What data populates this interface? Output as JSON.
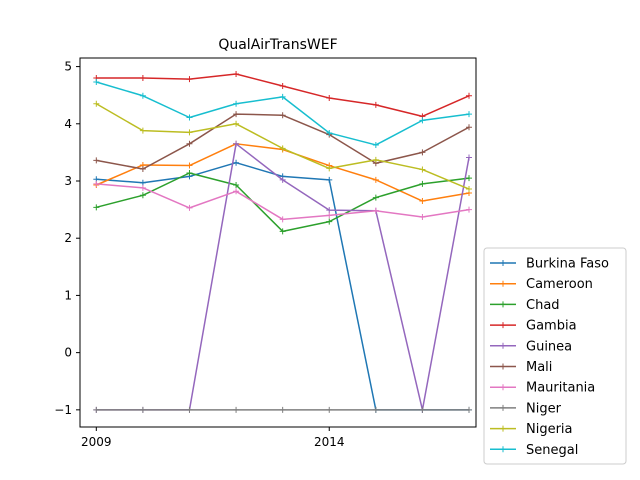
{
  "chart_data": {
    "type": "line",
    "title": "QualAirTransWEF",
    "xlabel": "",
    "ylabel": "",
    "x": [
      2009,
      2010,
      2011,
      2012,
      2013,
      2014,
      2015,
      2016,
      2017
    ],
    "xticks": [
      2009,
      2014
    ],
    "yticks": [
      -1,
      0,
      1,
      2,
      3,
      4,
      5
    ],
    "xlim": [
      2008.65,
      2017.15
    ],
    "ylim": [
      -1.3,
      5.15
    ],
    "grid": false,
    "legend_position": "lower-right, outside plot",
    "series": [
      {
        "name": "Burkina Faso",
        "color": "#1f77b4",
        "values": [
          3.03,
          2.97,
          3.08,
          3.32,
          3.08,
          3.02,
          -1.0,
          -1.0,
          -1.0
        ]
      },
      {
        "name": "Cameroon",
        "color": "#ff7f0e",
        "values": [
          2.93,
          3.28,
          3.27,
          3.65,
          3.55,
          3.27,
          3.02,
          2.65,
          2.79
        ]
      },
      {
        "name": "Chad",
        "color": "#2ca02c",
        "values": [
          2.54,
          2.75,
          3.14,
          2.93,
          2.12,
          2.29,
          2.71,
          2.95,
          3.05
        ]
      },
      {
        "name": "Gambia",
        "color": "#d62728",
        "values": [
          4.8,
          4.8,
          4.78,
          4.87,
          4.66,
          4.45,
          4.33,
          4.13,
          4.49
        ]
      },
      {
        "name": "Guinea",
        "color": "#9467bd",
        "values": [
          -1.0,
          -1.0,
          -1.0,
          3.65,
          3.02,
          2.49,
          2.48,
          -1.0,
          3.41
        ]
      },
      {
        "name": "Mali",
        "color": "#8c564b",
        "values": [
          3.36,
          3.21,
          3.65,
          4.17,
          4.15,
          3.81,
          3.31,
          3.5,
          3.94
        ]
      },
      {
        "name": "Mauritania",
        "color": "#e377c2",
        "values": [
          2.95,
          2.88,
          2.53,
          2.82,
          2.33,
          2.4,
          2.48,
          2.37,
          2.5
        ]
      },
      {
        "name": "Niger",
        "color": "#7f7f7f",
        "values": [
          -1.0,
          -1.0,
          -1.0,
          -1.0,
          -1.0,
          -1.0,
          -1.0,
          -1.0,
          -1.0
        ]
      },
      {
        "name": "Nigeria",
        "color": "#bcbd22",
        "values": [
          4.35,
          3.88,
          3.85,
          4.0,
          3.57,
          3.22,
          3.37,
          3.2,
          2.86
        ]
      },
      {
        "name": "Senegal",
        "color": "#17becf",
        "values": [
          4.73,
          4.49,
          4.11,
          4.35,
          4.47,
          3.84,
          3.63,
          4.06,
          4.17
        ]
      }
    ]
  }
}
